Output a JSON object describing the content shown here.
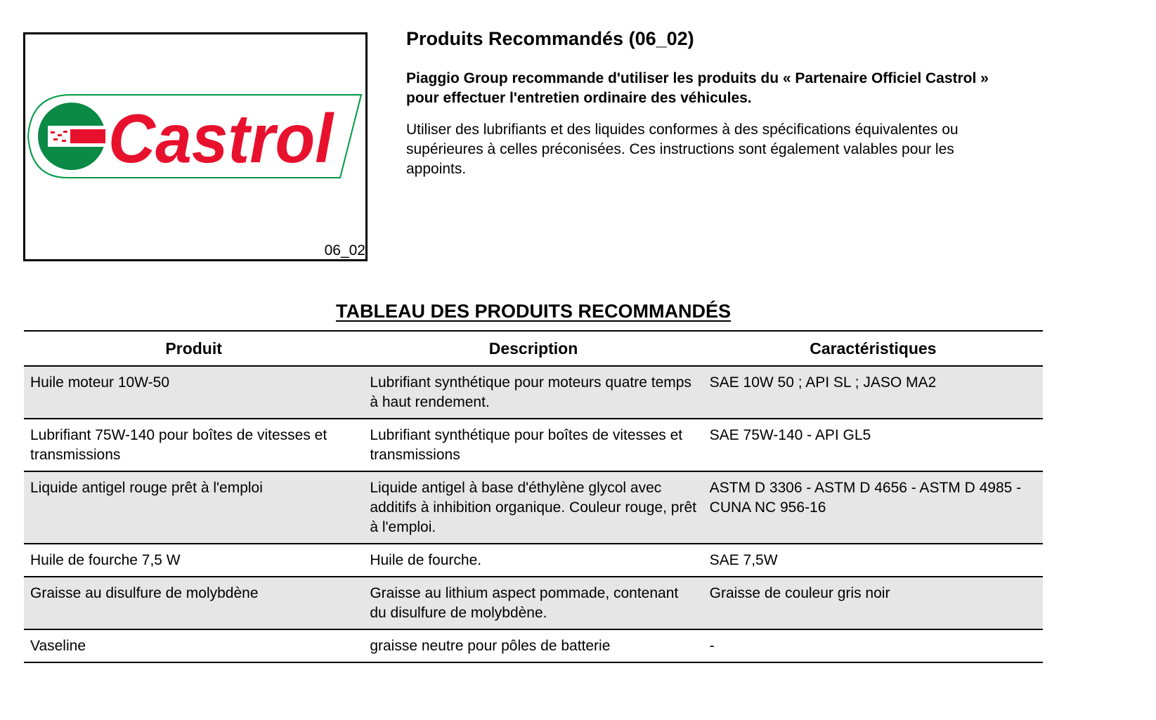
{
  "figure": {
    "logo_text": "Castrol",
    "label": "06_02",
    "colors": {
      "red": "#e8112d",
      "green": "#009a44"
    }
  },
  "header": {
    "title": "Produits Recommandés (06_02)",
    "lead": "Piaggio Group recommande d'utiliser les produits du « Partenaire Officiel Castrol » pour effectuer l'entretien ordinaire des véhicules.",
    "body": "Utiliser des lubrifiants et des liquides conformes à des spécifications équivalentes ou supérieures à celles préconisées. Ces instructions sont également valables pour les appoints."
  },
  "table": {
    "title": "TABLEAU DES PRODUITS RECOMMANDÉS",
    "columns": [
      "Produit",
      "Description",
      "Caractéristiques"
    ],
    "rows": [
      [
        "Huile moteur 10W-50",
        "Lubrifiant synthétique pour moteurs quatre temps à haut rendement.",
        "SAE 10W 50 ; API SL ; JASO MA2"
      ],
      [
        "Lubrifiant 75W-140 pour boîtes de vitesses et transmissions",
        "Lubrifiant synthétique pour boîtes de vitesses et transmissions",
        "SAE 75W-140 - API GL5"
      ],
      [
        "Liquide antigel rouge prêt à l'emploi",
        "Liquide antigel à base d'éthylène glycol avec additifs à inhibition organique. Couleur rouge, prêt à l'emploi.",
        "ASTM D 3306 - ASTM D 4656 - ASTM D 4985 - CUNA NC 956-16"
      ],
      [
        "Huile de fourche 7,5 W",
        "Huile de fourche.",
        "SAE 7,5W"
      ],
      [
        "Graisse au disulfure de molybdène",
        "Graisse au lithium aspect pommade, contenant du disulfure de molybdène.",
        "Graisse de couleur gris noir"
      ],
      [
        "Vaseline",
        "graisse neutre pour pôles de batterie",
        "-"
      ]
    ]
  }
}
